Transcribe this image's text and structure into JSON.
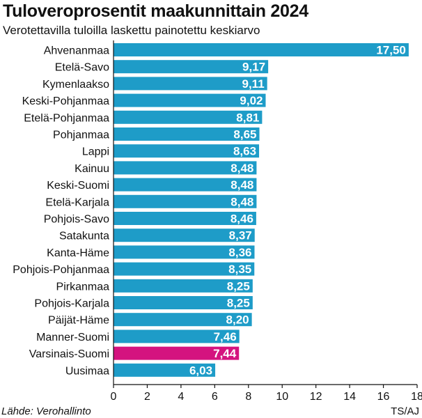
{
  "chart_data": {
    "type": "bar",
    "orientation": "horizontal",
    "title": "Tuloveroprosentit maakunnittain 2024",
    "subtitle": "Verotettavilla tuloilla laskettu painotettu keskiarvo",
    "categories": [
      "Ahvenanmaa",
      "Etelä-Savo",
      "Kymenlaakso",
      "Keski-Pohjanmaa",
      "Etelä-Pohjanmaa",
      "Pohjanmaa",
      "Lappi",
      "Kainuu",
      "Keski-Suomi",
      "Etelä-Karjala",
      "Pohjois-Savo",
      "Satakunta",
      "Kanta-Häme",
      "Pohjois-Pohjanmaa",
      "Pirkanmaa",
      "Pohjois-Karjala",
      "Päijät-Häme",
      "Manner-Suomi",
      "Varsinais-Suomi",
      "Uusimaa"
    ],
    "values": [
      17.5,
      9.17,
      9.11,
      9.02,
      8.81,
      8.65,
      8.63,
      8.48,
      8.48,
      8.48,
      8.46,
      8.37,
      8.36,
      8.35,
      8.25,
      8.25,
      8.2,
      7.46,
      7.44,
      6.03
    ],
    "value_labels": [
      "17,50",
      "9,17",
      "9,11",
      "9,02",
      "8,81",
      "8,65",
      "8,63",
      "8,48",
      "8,48",
      "8,48",
      "8,46",
      "8,37",
      "8,36",
      "8,35",
      "8,25",
      "8,25",
      "8,20",
      "7,46",
      "7,44",
      "6,03"
    ],
    "highlight": "Varsinais-Suomi",
    "x_ticks": [
      "0",
      "2",
      "4",
      "6",
      "8",
      "10",
      "12",
      "14",
      "16",
      "18"
    ],
    "xlim": [
      0,
      18
    ],
    "grid": false,
    "colors": {
      "bar": "#1e9cc8",
      "highlight": "#d4137f",
      "axis": "#111111"
    }
  },
  "footer": {
    "source": "Lähde: Verohallinto",
    "credit": "TS/AJ"
  }
}
